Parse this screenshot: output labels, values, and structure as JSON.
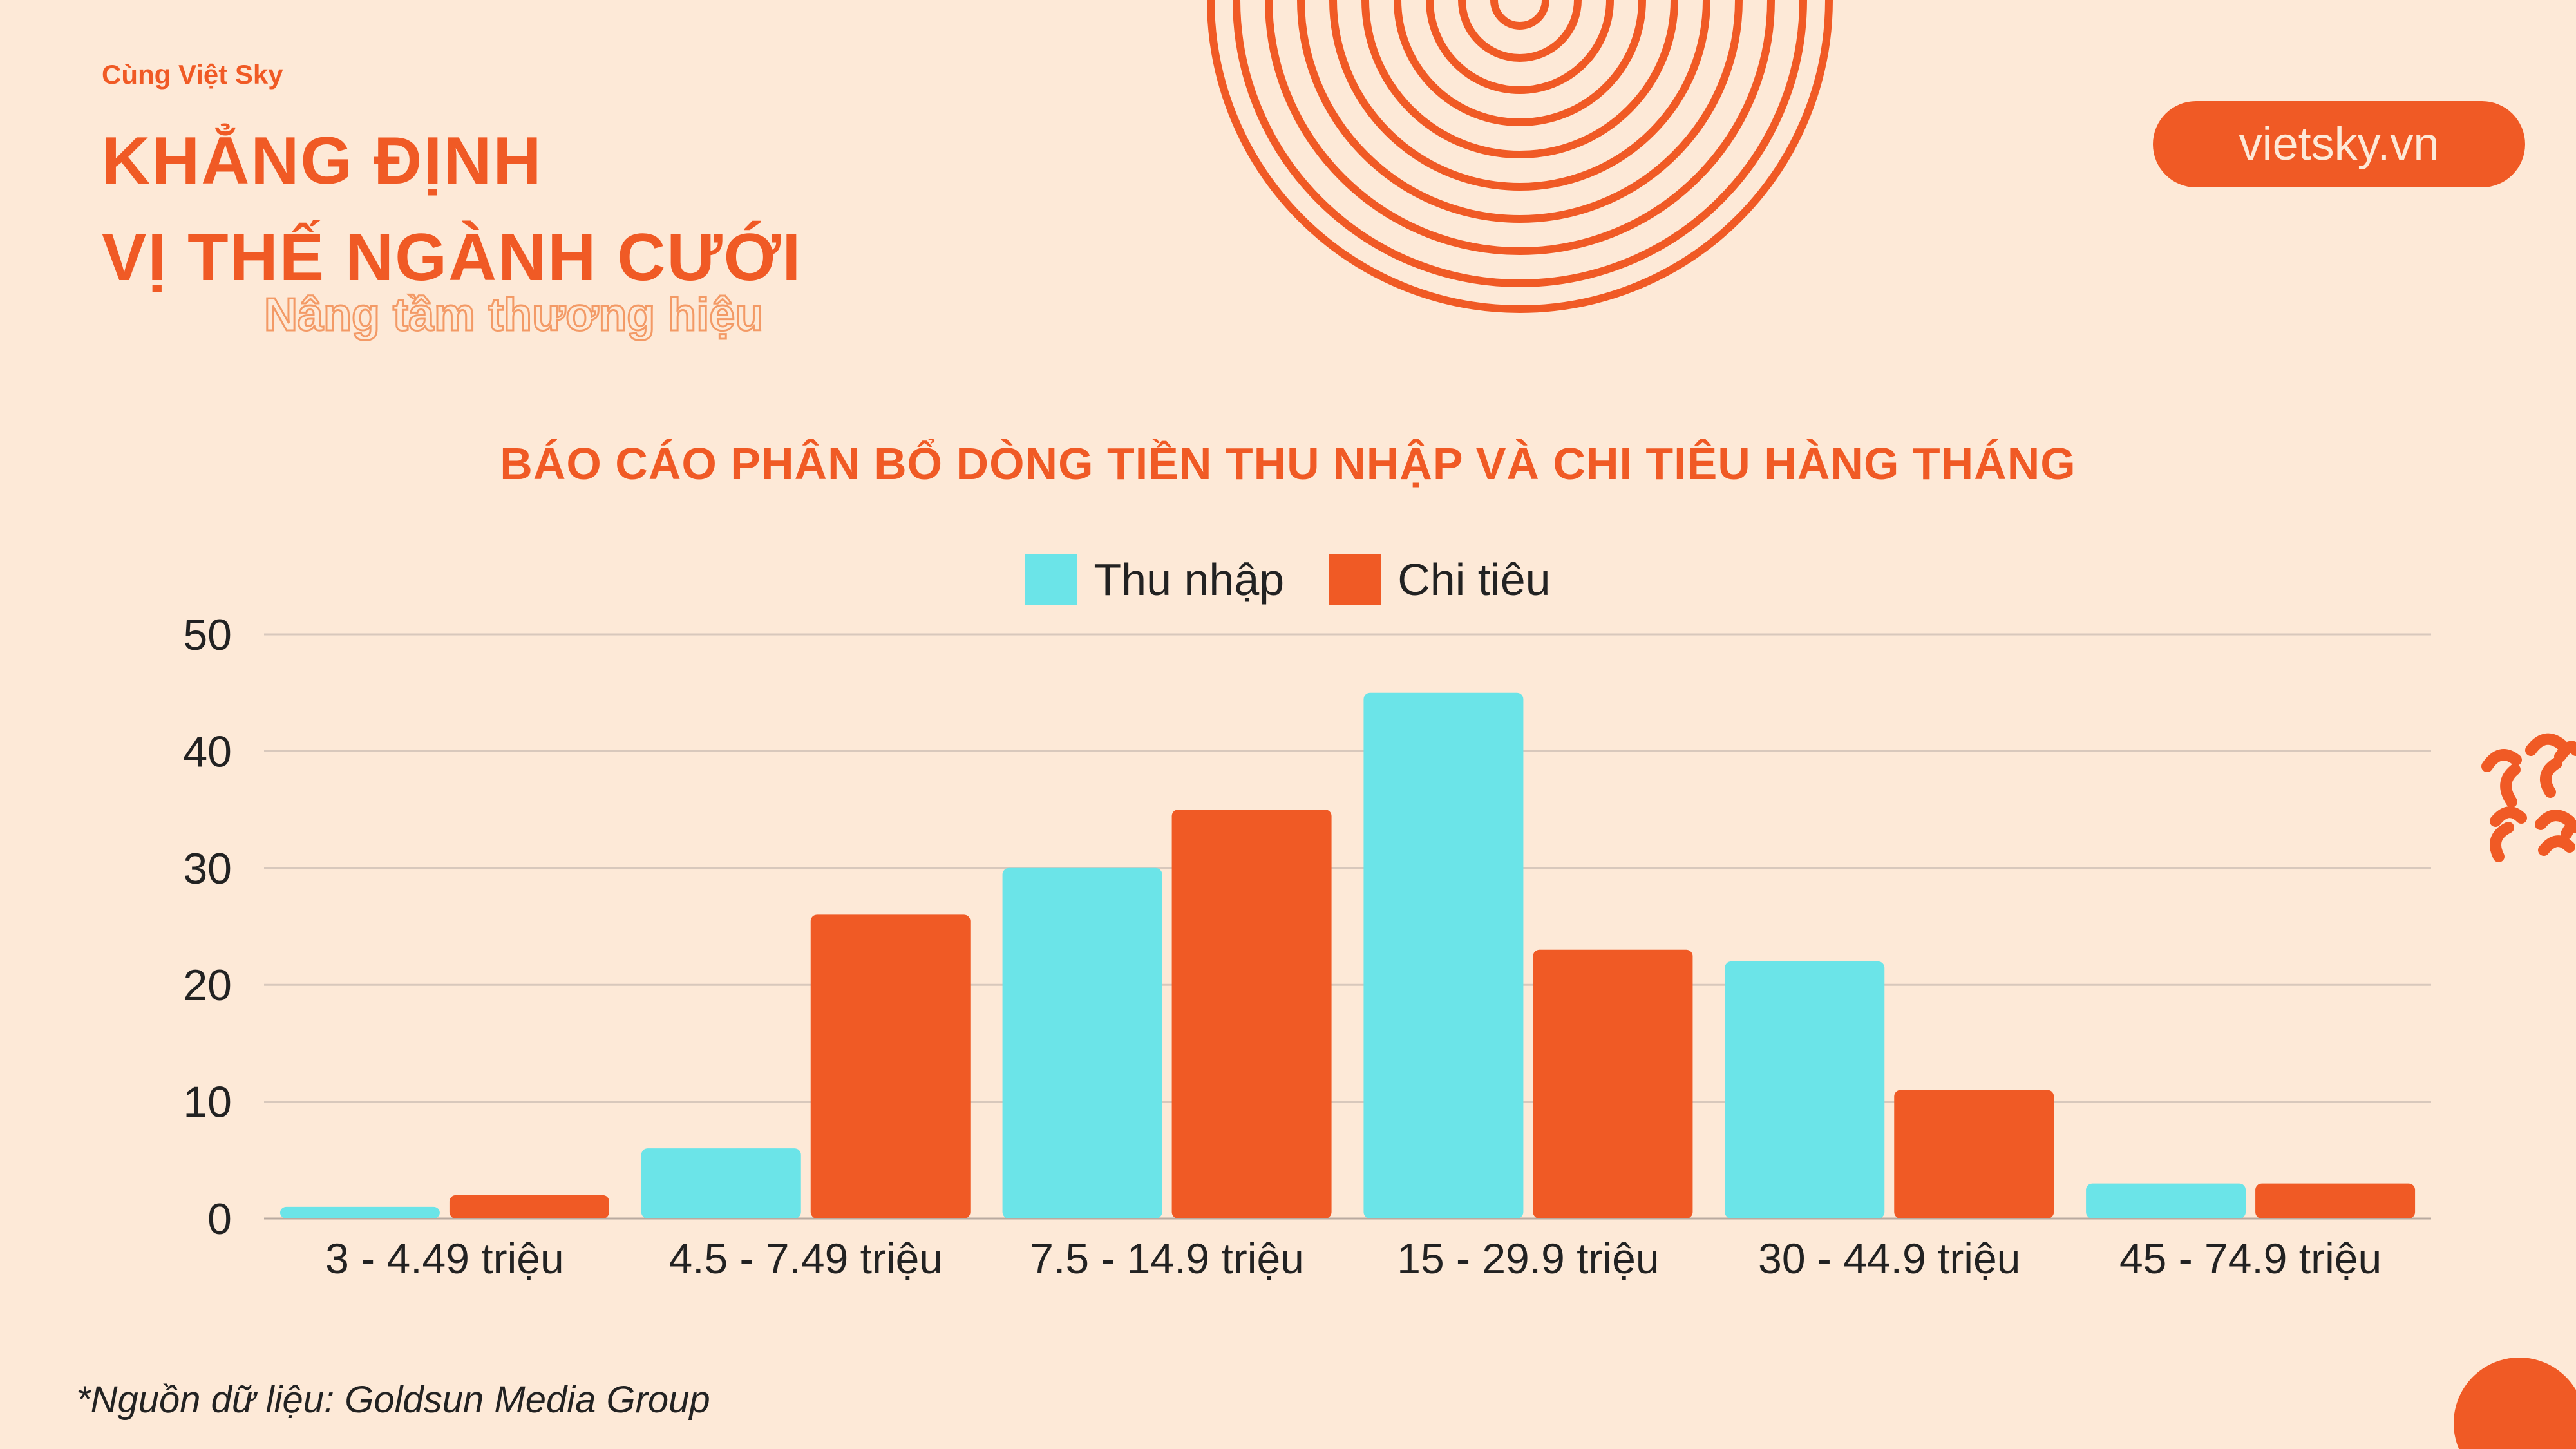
{
  "brand": {
    "small": "Cùng Việt Sky",
    "title_lines": [
      "KHẲNG ĐỊNH",
      "VỊ THẾ NGÀNH CƯỚI"
    ],
    "tagline": "Nâng tầm thương hiệu",
    "website": "vietsky.vn"
  },
  "colors": {
    "background": "#fde9d7",
    "accent": "#f05a25",
    "income": "#6be4e8",
    "spending": "#f05a25"
  },
  "chart_data": {
    "type": "bar",
    "title": "BÁO CÁO PHÂN BỔ DÒNG TIỀN THU NHẬP VÀ CHI TIÊU HÀNG THÁNG",
    "categories": [
      "3 - 4.49 triệu",
      "4.5 - 7.49 triệu",
      "7.5 - 14.9 triệu",
      "15 - 29.9 triệu",
      "30 - 44.9 triệu",
      "45 - 74.9 triệu"
    ],
    "series": [
      {
        "name": "Thu nhập",
        "color": "#6be4e8",
        "values": [
          1,
          6,
          30,
          45,
          22,
          3
        ]
      },
      {
        "name": "Chi tiêu",
        "color": "#f05a25",
        "values": [
          2,
          26,
          35,
          23,
          11,
          3
        ]
      }
    ],
    "ylim": [
      0,
      50
    ],
    "yticks": [
      0,
      10,
      20,
      30,
      40,
      50
    ],
    "grid": true,
    "legend_position": "top-center",
    "xlabel": "",
    "ylabel": ""
  },
  "source": "*Nguồn dữ liệu: Goldsun Media Group"
}
